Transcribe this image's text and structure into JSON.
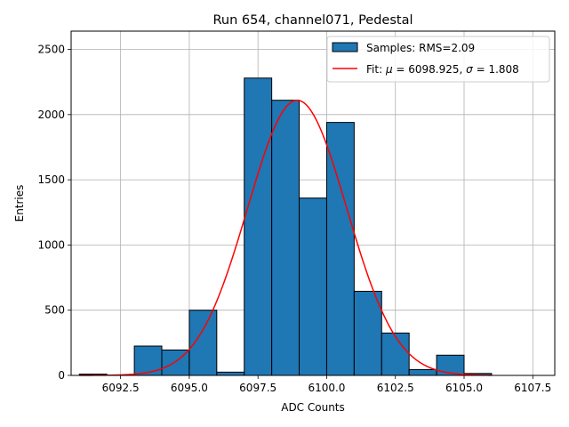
{
  "chart_data": {
    "type": "bar",
    "title": "Run 654, channel071, Pedestal",
    "xlabel": "ADC Counts",
    "ylabel": "Entries",
    "xlim": [
      6090.7,
      6108.3
    ],
    "ylim": [
      0,
      2640
    ],
    "grid": true,
    "legend_position": "top-right",
    "x_ticks": [
      6092.5,
      6095.0,
      6097.5,
      6100.0,
      6102.5,
      6105.0,
      6107.5
    ],
    "x_tick_labels": [
      "6092.5",
      "6095.0",
      "6097.5",
      "6100.0",
      "6102.5",
      "6105.0",
      "6107.5"
    ],
    "y_ticks": [
      0,
      500,
      1000,
      1500,
      2000,
      2500
    ],
    "y_tick_labels": [
      "0",
      "500",
      "1000",
      "1500",
      "2000",
      "2500"
    ],
    "histogram": {
      "name": "Samples: RMS=2.09",
      "color": "#1f77b4",
      "edge_color": "#000000",
      "bin_edges": [
        6091,
        6092,
        6093,
        6094,
        6095,
        6096,
        6097,
        6098,
        6099,
        6100,
        6101,
        6102,
        6103,
        6104,
        6105,
        6106
      ],
      "counts": [
        10,
        0,
        225,
        195,
        500,
        25,
        2280,
        2110,
        1360,
        1940,
        645,
        325,
        45,
        155,
        15
      ]
    },
    "fit": {
      "name": "Fit: μ = 6098.925, σ = 1.808",
      "color": "#ff0000",
      "mu": 6098.925,
      "sigma": 1.808,
      "amplitude": 2110,
      "x_range": [
        6091,
        6106
      ]
    },
    "legend": [
      {
        "label": "Samples: RMS=2.09",
        "kind": "patch"
      },
      {
        "label": "Fit: μ = 6098.925, σ = 1.808",
        "kind": "line"
      }
    ]
  }
}
